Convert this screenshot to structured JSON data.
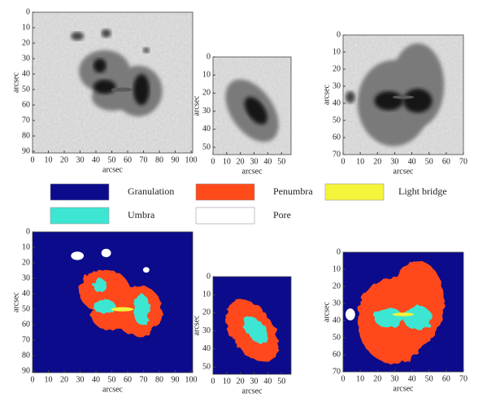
{
  "panels": [
    {
      "xlim": [
        0,
        101
      ],
      "ylim": [
        0,
        91
      ],
      "xticks": [
        0,
        10,
        20,
        30,
        40,
        50,
        60,
        70,
        80,
        90,
        100
      ],
      "yticks": [
        0,
        10,
        20,
        30,
        40,
        50,
        60,
        70,
        80,
        90
      ],
      "xlabel": "arcsec",
      "ylabel": "arcsec"
    },
    {
      "xlim": [
        0,
        57
      ],
      "ylim": [
        0,
        54
      ],
      "xticks": [
        0,
        10,
        20,
        30,
        40,
        50
      ],
      "yticks": [
        0,
        10,
        20,
        30,
        40,
        50
      ],
      "xlabel": "arcsec",
      "ylabel": "arcsec"
    },
    {
      "xlim": [
        0,
        70
      ],
      "ylim": [
        0,
        70
      ],
      "xticks": [
        0,
        10,
        20,
        30,
        40,
        50,
        60,
        70
      ],
      "yticks": [
        0,
        10,
        20,
        30,
        40,
        50,
        60,
        70
      ],
      "xlabel": "arcsec",
      "ylabel": "arcsec"
    },
    {
      "xlim": [
        0,
        101
      ],
      "ylim": [
        0,
        91
      ],
      "xticks": [
        0,
        10,
        20,
        30,
        40,
        50,
        60,
        70,
        80,
        90,
        100
      ],
      "yticks": [
        0,
        10,
        20,
        30,
        40,
        50,
        60,
        70,
        80,
        90
      ],
      "xlabel": "arcsec",
      "ylabel": "arcsec"
    },
    {
      "xlim": [
        0,
        57
      ],
      "ylim": [
        0,
        54
      ],
      "xticks": [
        0,
        10,
        20,
        30,
        40,
        50
      ],
      "yticks": [
        0,
        10,
        20,
        30,
        40,
        50
      ],
      "xlabel": "arcsec",
      "ylabel": "arcsec"
    },
    {
      "xlim": [
        0,
        70
      ],
      "ylim": [
        0,
        70
      ],
      "xticks": [
        0,
        10,
        20,
        30,
        40,
        50,
        60,
        70
      ],
      "yticks": [
        0,
        10,
        20,
        30,
        40,
        50,
        60,
        70
      ],
      "xlabel": "arcsec",
      "ylabel": "arcsec"
    }
  ],
  "legend": [
    {
      "label": "Granulation",
      "color": "#0b0b8c"
    },
    {
      "label": "Penumbra",
      "color": "#ff4a1a"
    },
    {
      "label": "Light bridge",
      "color": "#f4f43a"
    },
    {
      "label": "Umbra",
      "color": "#3de6d2"
    },
    {
      "label": "Pore",
      "color": "#ffffff"
    }
  ]
}
